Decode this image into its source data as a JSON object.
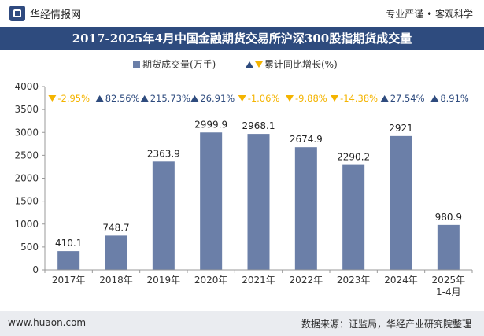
{
  "header": {
    "brand_name": "华经情报网",
    "tagline": "专业严谨 • 客观科学",
    "logo_icon": "huajing-logo-icon"
  },
  "footer": {
    "website": "www.huaon.com",
    "source": "数据来源：证监局，华经产业研究院整理"
  },
  "chart_data": {
    "type": "bar",
    "title": "2017-2025年4月中国金融期货交易所沪深300股指期货成交量",
    "categories": [
      "2017年",
      "2018年",
      "2019年",
      "2020年",
      "2021年",
      "2022年",
      "2023年",
      "2024年",
      "2025年 1-4月"
    ],
    "series": [
      {
        "name": "期货成交量(万手)",
        "values": [
          410.1,
          748.7,
          2363.9,
          2999.9,
          2968.1,
          2674.9,
          2290.2,
          2921,
          980.9
        ],
        "color": "#6b7fa8"
      }
    ],
    "value_labels": [
      "410.1",
      "748.7",
      "2363.9",
      "2999.9",
      "2968.1",
      "2674.9",
      "2290.2",
      "2921",
      "980.9"
    ],
    "growth": {
      "name": "累计同比增长(%)",
      "values": [
        -2.95,
        82.56,
        215.73,
        26.91,
        -1.06,
        -9.88,
        -14.38,
        27.54,
        8.91
      ],
      "labels": [
        "-2.95%",
        "82.56%",
        "215.73%",
        "26.91%",
        "-1.06%",
        "-9.88%",
        "-14.38%",
        "27.54%",
        "8.91%"
      ],
      "up_color": "#2e4b7e",
      "down_color": "#f4b400"
    },
    "ylim": [
      0,
      4000
    ],
    "yticks": [
      "0",
      "500",
      "1000",
      "1500",
      "2000",
      "2500",
      "3000",
      "3500",
      "4000"
    ],
    "legend_position": "top",
    "grid": false
  }
}
